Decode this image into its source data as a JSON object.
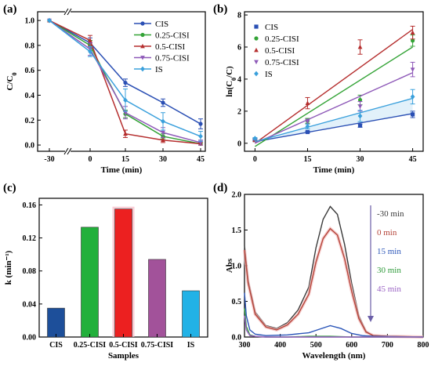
{
  "chart_data": [
    {
      "label": "(a)",
      "type": "line",
      "xlabel": "Time (min)",
      "ylabel": "C/C0",
      "ylabel_main": "C/C",
      "ylabel_sub": "0",
      "x": [
        -30,
        0,
        15,
        30,
        45
      ],
      "xticks": [
        "-30",
        "0",
        "15",
        "30",
        "45"
      ],
      "yticks": [
        "0.0",
        "0.2",
        "0.4",
        "0.6",
        "0.8",
        "1.0"
      ],
      "ylim": [
        -0.05,
        1.07
      ],
      "legend_position": "top-right",
      "series": [
        {
          "name": "CIS",
          "color": "#2a4fb4",
          "marker": "circle",
          "values": [
            1.0,
            0.82,
            0.5,
            0.34,
            0.17
          ],
          "errors": [
            0,
            0.04,
            0.03,
            0.03,
            0.04
          ]
        },
        {
          "name": "0.25-CISI",
          "color": "#33a336",
          "marker": "circle",
          "values": [
            1.0,
            0.8,
            0.25,
            0.07,
            0.01
          ],
          "errors": [
            0,
            0.04,
            0.03,
            0.02,
            0.01
          ]
        },
        {
          "name": "0.5-CISI",
          "color": "#b52e2e",
          "marker": "triangle",
          "values": [
            1.0,
            0.84,
            0.09,
            0.04,
            0.01
          ],
          "errors": [
            0,
            0.04,
            0.03,
            0.02,
            0.01
          ]
        },
        {
          "name": "0.75-CISI",
          "color": "#8e59b8",
          "marker": "triangle-down",
          "values": [
            1.0,
            0.77,
            0.26,
            0.1,
            0.02
          ],
          "errors": [
            0,
            0.05,
            0.05,
            0.04,
            0.02
          ]
        },
        {
          "name": "IS",
          "color": "#3aa0dc",
          "marker": "diamond",
          "values": [
            1.0,
            0.75,
            0.36,
            0.19,
            0.07
          ],
          "errors": [
            0,
            0.04,
            0.09,
            0.07,
            0.04
          ]
        }
      ]
    },
    {
      "label": "(b)",
      "type": "scatter",
      "xlabel": "Time (min)",
      "ylabel": "ln(C0/C)",
      "ylabel_main": "ln(C",
      "ylabel_sub": "0",
      "ylabel_end": "/C)",
      "x": [
        0,
        15,
        30,
        45
      ],
      "xticks": [
        "0",
        "15",
        "30",
        "45"
      ],
      "yticks": [
        "0",
        "2",
        "4",
        "6",
        "8"
      ],
      "xlim": [
        -3,
        48
      ],
      "ylim": [
        -0.5,
        8.2
      ],
      "legend_position": "top-left",
      "series": [
        {
          "name": "CIS",
          "color": "#2a4fb4",
          "marker": "square",
          "values": [
            0.2,
            0.7,
            1.1,
            1.8
          ],
          "errors": [
            0.05,
            0.05,
            0.1,
            0.2
          ],
          "fit": [
            0.1,
            1.85
          ]
        },
        {
          "name": "0.25-CISI",
          "color": "#33a336",
          "marker": "circle",
          "values": [
            0.25,
            1.4,
            2.7,
            6.4
          ],
          "errors": [
            0.05,
            0.15,
            0.3,
            0.35
          ],
          "fit": [
            -0.2,
            6.0
          ]
        },
        {
          "name": "0.5-CISI",
          "color": "#b52e2e",
          "marker": "triangle",
          "values": [
            0.2,
            2.5,
            6.0,
            6.9
          ],
          "errors": [
            0.1,
            0.35,
            0.45,
            0.4
          ],
          "fit": [
            0.0,
            7.1
          ]
        },
        {
          "name": "0.75-CISI",
          "color": "#8e59b8",
          "marker": "triangle-down",
          "values": [
            0.25,
            1.35,
            2.3,
            4.6
          ],
          "errors": [
            0.05,
            0.15,
            0.3,
            0.45
          ],
          "fit": [
            0.0,
            4.4
          ]
        },
        {
          "name": "IS",
          "color": "#3aa0dc",
          "marker": "diamond",
          "values": [
            0.3,
            1.05,
            1.7,
            2.9
          ],
          "errors": [
            0.05,
            0.15,
            0.35,
            0.45
          ],
          "fit": [
            0.1,
            2.8
          ]
        }
      ]
    },
    {
      "label": "(c)",
      "type": "bar",
      "xlabel": "Samples",
      "ylabel": "k (min⁻¹)",
      "categories": [
        "CIS",
        "0.25-CISI",
        "0.5-CISI",
        "0.75-CISI",
        "IS"
      ],
      "values": [
        0.035,
        0.133,
        0.155,
        0.094,
        0.056
      ],
      "colors": [
        "#1d4f9a",
        "#22b03b",
        "#ec2020",
        "#a2529a",
        "#22b2e6"
      ],
      "yticks": [
        "0.00",
        "0.04",
        "0.08",
        "0.12",
        "0.16"
      ],
      "ylim": [
        0,
        0.168
      ]
    },
    {
      "label": "(d)",
      "type": "line",
      "xlabel": "Wavelength (nm)",
      "ylabel": "Abs",
      "xticks": [
        "300",
        "400",
        "500",
        "600",
        "700",
        "800"
      ],
      "yticks": [
        "0.0",
        "0.5",
        "1.0",
        "1.5",
        "2.0"
      ],
      "xlim": [
        300,
        800
      ],
      "ylim": [
        0,
        2.0
      ],
      "legend_position": "right",
      "series": [
        {
          "name": "-30 min",
          "color": "#3a3a3a",
          "x": [
            300,
            310,
            330,
            360,
            390,
            420,
            450,
            480,
            500,
            520,
            540,
            560,
            580,
            600,
            620,
            640,
            660,
            700,
            800
          ],
          "values": [
            1.28,
            0.8,
            0.35,
            0.16,
            0.12,
            0.2,
            0.38,
            0.7,
            1.25,
            1.65,
            1.83,
            1.72,
            1.3,
            0.75,
            0.3,
            0.08,
            0.02,
            0.01,
            0.0
          ]
        },
        {
          "name": "0 min",
          "color": "#b5453a",
          "x": [
            300,
            310,
            330,
            360,
            390,
            420,
            450,
            480,
            500,
            520,
            540,
            560,
            580,
            600,
            620,
            640,
            660,
            700,
            800
          ],
          "values": [
            1.22,
            0.76,
            0.32,
            0.14,
            0.1,
            0.17,
            0.32,
            0.6,
            1.05,
            1.38,
            1.52,
            1.43,
            1.1,
            0.64,
            0.26,
            0.07,
            0.02,
            0.01,
            0.0
          ]
        },
        {
          "name": "15 min",
          "color": "#2a55b8",
          "x": [
            300,
            305,
            315,
            330,
            360,
            420,
            480,
            510,
            540,
            570,
            600,
            630,
            660,
            800
          ],
          "values": [
            0.62,
            0.3,
            0.1,
            0.04,
            0.02,
            0.03,
            0.06,
            0.11,
            0.16,
            0.12,
            0.05,
            0.02,
            0.01,
            0.0
          ]
        },
        {
          "name": "30 min",
          "color": "#2e9a3a",
          "x": [
            300,
            305,
            315,
            330,
            360,
            420,
            480,
            540,
            600,
            800
          ],
          "values": [
            0.4,
            0.15,
            0.03,
            0.01,
            0.0,
            0.0,
            0.01,
            0.01,
            0.0,
            0.0
          ]
        },
        {
          "name": "45 min",
          "color": "#9a63c4",
          "x": [
            300,
            305,
            315,
            330,
            360,
            800
          ],
          "values": [
            0.3,
            0.1,
            0.02,
            0.01,
            0.0,
            0.0
          ]
        }
      ]
    }
  ]
}
